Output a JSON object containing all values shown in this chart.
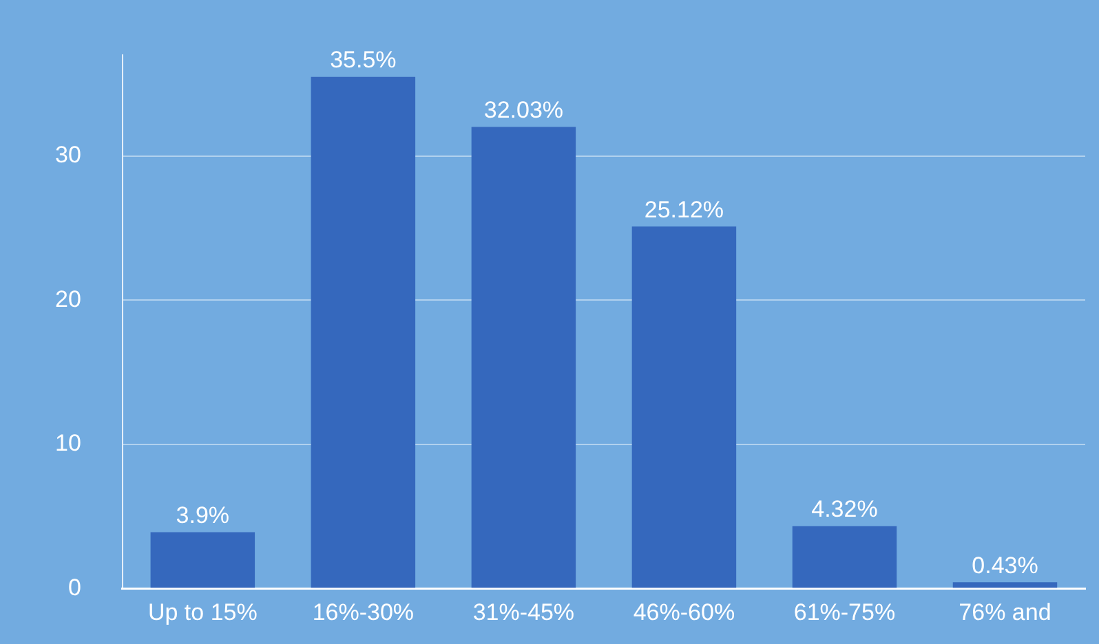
{
  "chart_data": {
    "type": "bar",
    "categories": [
      "Up to 15%",
      "16%-30%",
      "31%-45%",
      "46%-60%",
      "61%-75%",
      "76% and"
    ],
    "values": [
      3.9,
      35.5,
      32.03,
      25.12,
      4.32,
      0.43
    ],
    "value_labels": [
      "3.9%",
      "35.5%",
      "32.03%",
      "25.12%",
      "4.32%",
      "0.43%"
    ],
    "color": "#3568bd",
    "ylim": [
      0,
      37
    ],
    "yticks": [
      0,
      10,
      20,
      30
    ],
    "grid": "y"
  }
}
